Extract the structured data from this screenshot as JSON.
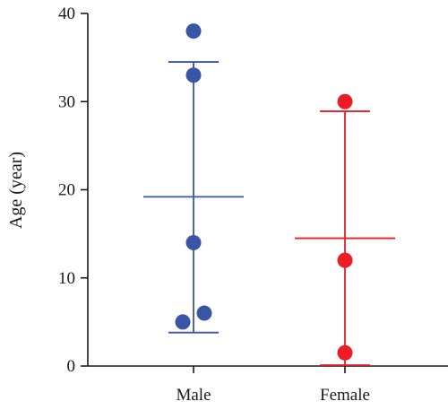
{
  "chart_data": {
    "type": "scatter",
    "title": "",
    "xlabel": "",
    "ylabel": "Age (year)",
    "ylim": [
      0,
      40
    ],
    "yticks": [
      0,
      10,
      20,
      30,
      40
    ],
    "categories": [
      "Male",
      "Female"
    ],
    "grid": false,
    "legend": "none",
    "series": [
      {
        "category": "Male",
        "color": "#3a55a6",
        "points": [
          38,
          33,
          14,
          6,
          5
        ],
        "mean": 19.2,
        "sd_upper": 34.5,
        "sd_lower": 3.8
      },
      {
        "category": "Female",
        "color": "#ee1c25",
        "points": [
          30,
          12,
          1.5
        ],
        "mean": 14.5,
        "sd_upper": 28.9,
        "sd_lower": 0.1
      }
    ]
  }
}
